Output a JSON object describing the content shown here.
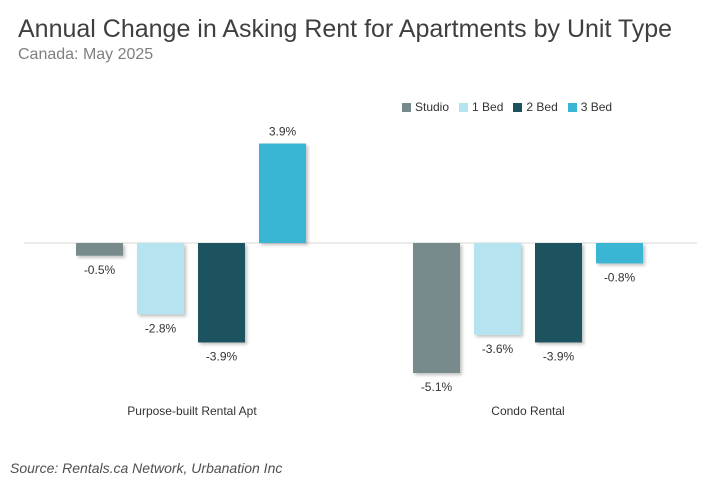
{
  "title": "Annual Change in Asking Rent for Apartments by Unit Type",
  "subtitle": "Canada: May 2025",
  "source": "Source: Rentals.ca Network, Urbanation Inc",
  "chart_data": {
    "type": "bar",
    "categories": [
      "Purpose-built Rental Apt",
      "Condo Rental"
    ],
    "series": [
      {
        "name": "Studio",
        "values": [
          -0.5,
          -5.1
        ],
        "labels": [
          "-0.5%",
          "-5.1%"
        ],
        "color": "#778b8c"
      },
      {
        "name": "1 Bed",
        "values": [
          -2.8,
          -3.6
        ],
        "labels": [
          "-2.8%",
          "-3.6%"
        ],
        "color": "#b5e3ef"
      },
      {
        "name": "2 Bed",
        "values": [
          -3.9,
          -3.9
        ],
        "labels": [
          "-3.9%",
          "-3.9%"
        ],
        "color": "#1b525e"
      },
      {
        "name": "3 Bed",
        "values": [
          3.9,
          -0.8
        ],
        "labels": [
          "3.9%",
          "-0.8%"
        ],
        "color": "#3bb5d4"
      }
    ],
    "unit": "%",
    "ylim": [
      -5.5,
      4.5
    ],
    "grid": false,
    "legend_position": "top-right",
    "axis_line_color": "#d9d9d9"
  }
}
